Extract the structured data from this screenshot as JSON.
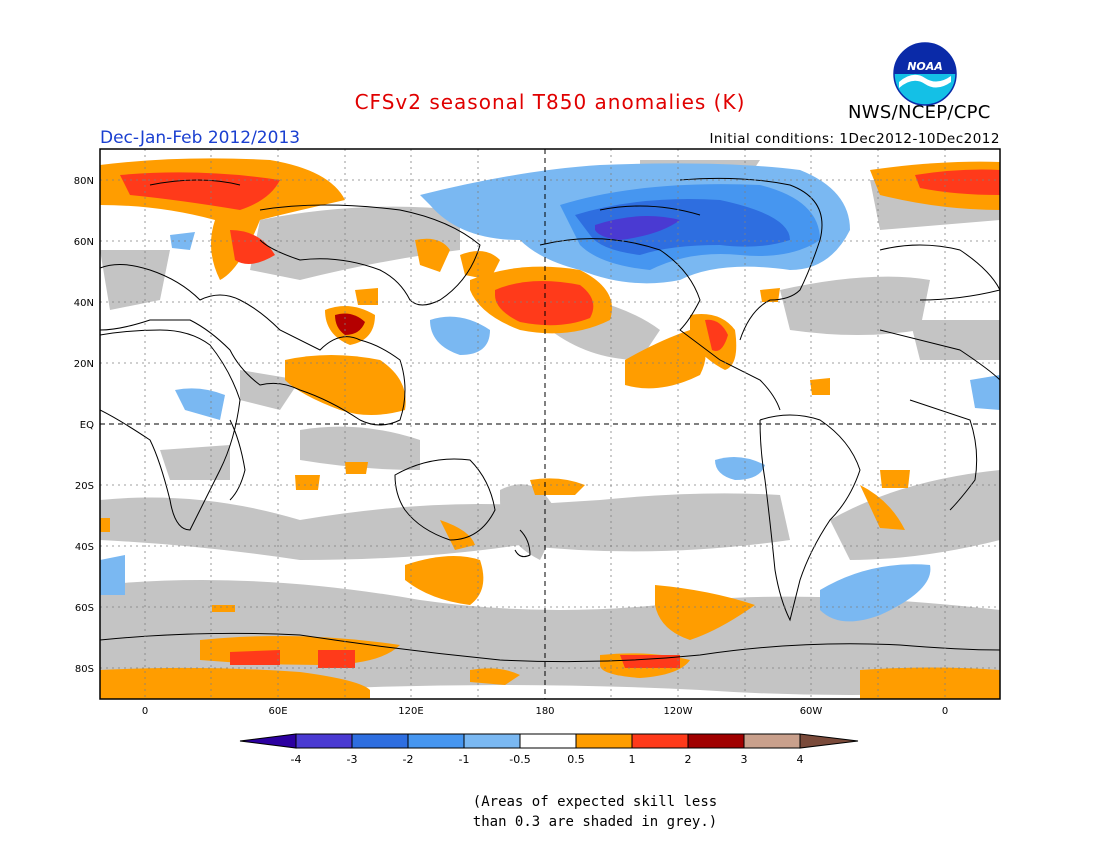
{
  "header": {
    "title": "CFSv2 seasonal T850 anomalies (K)",
    "season": "Dec-Jan-Feb 2012/2013",
    "initial_conditions": "Initial conditions: 1Dec2012-10Dec2012",
    "agency": "NWS/NCEP/CPC",
    "logo_text": "NOAA"
  },
  "map": {
    "lat_labels": [
      "80N",
      "60N",
      "40N",
      "20N",
      "EQ",
      "20S",
      "40S",
      "60S",
      "80S"
    ],
    "lon_labels": [
      "0",
      "60E",
      "120E",
      "180",
      "120W",
      "60W",
      "0"
    ]
  },
  "colorbar": {
    "tick_labels": [
      "-4",
      "-3",
      "-2",
      "-1",
      "-0.5",
      "0.5",
      "1",
      "2",
      "3",
      "4"
    ],
    "colors": [
      "#2c00a0",
      "#4a3ad2",
      "#2e6ee0",
      "#4696f0",
      "#7ab8f2",
      "#ffffff",
      "#ff9d00",
      "#ff3a1a",
      "#a00000",
      "#c9a08c",
      "#7a4a3a"
    ]
  },
  "note": {
    "line1": "(Areas of expected skill less",
    "line2": "than 0.3 are shaded in grey.)"
  },
  "colors": {
    "grey_low_skill": "#c4c4c4",
    "orange": "#ff9d00",
    "red": "#ff3a1a",
    "dark_red": "#b40000",
    "blue_light": "#7ab8f2",
    "blue": "#4696f0",
    "blue_dark": "#2e6ee0",
    "blue_darkest": "#4a3ad2"
  }
}
